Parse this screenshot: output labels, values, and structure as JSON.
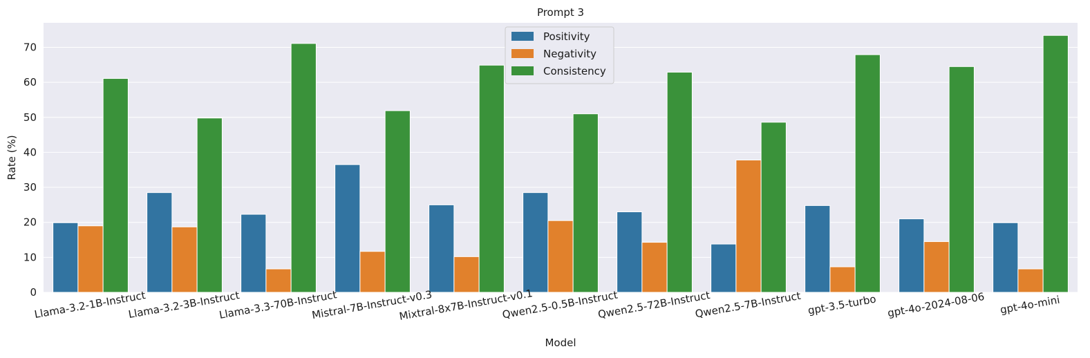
{
  "chart_data": {
    "type": "bar",
    "title": "Prompt 3",
    "xlabel": "Model",
    "ylabel": "Rate (%)",
    "ylim": [
      0,
      77
    ],
    "yticks": [
      0,
      10,
      20,
      30,
      40,
      50,
      60,
      70
    ],
    "grid": true,
    "legend_position": "top-center",
    "categories": [
      "Llama-3.2-1B-Instruct",
      "Llama-3.2-3B-Instruct",
      "Llama-3.3-70B-Instruct",
      "Mistral-7B-Instruct-v0.3",
      "Mixtral-8x7B-Instruct-v0.1",
      "Qwen2.5-0.5B-Instruct",
      "Qwen2.5-72B-Instruct",
      "Qwen2.5-7B-Instruct",
      "gpt-3.5-turbo",
      "gpt-4o-2024-08-06",
      "gpt-4o-mini"
    ],
    "series": [
      {
        "name": "Positivity",
        "color": "#3274a1",
        "values": [
          19.9,
          28.5,
          22.3,
          36.5,
          25.0,
          28.5,
          23.0,
          13.8,
          24.8,
          21.0,
          19.9
        ]
      },
      {
        "name": "Negativity",
        "color": "#e1812c",
        "values": [
          19.0,
          18.7,
          6.7,
          11.7,
          10.2,
          20.5,
          14.3,
          37.8,
          7.3,
          14.5,
          6.7
        ]
      },
      {
        "name": "Consistency",
        "color": "#3a923a",
        "values": [
          61.1,
          49.8,
          71.1,
          51.9,
          64.9,
          51.0,
          62.9,
          48.6,
          67.9,
          64.5,
          73.4
        ]
      }
    ]
  }
}
